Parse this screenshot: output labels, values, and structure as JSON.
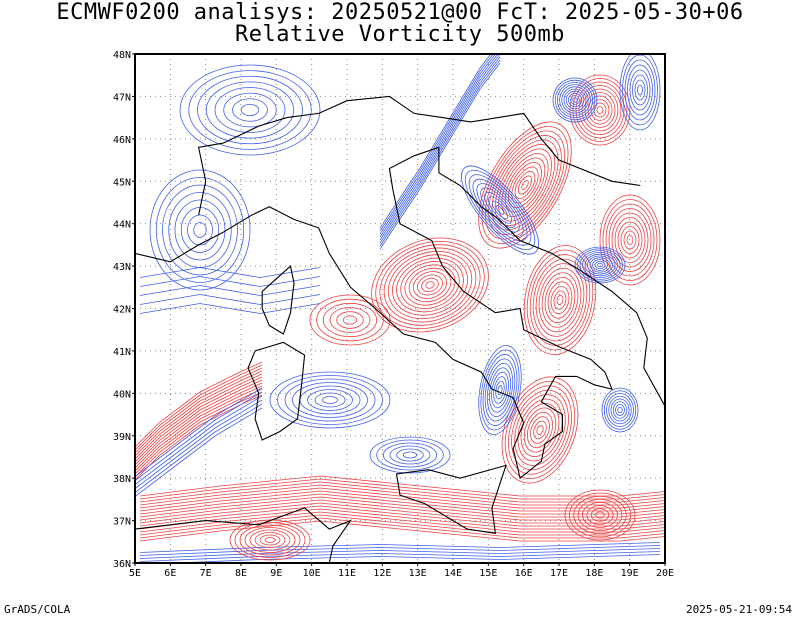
{
  "header": {
    "title_line1": "ECMWF0200 analisys: 20250521@00 FcT: 2025-05-30+06",
    "title_line2": "Relative Vorticity 500mb"
  },
  "map": {
    "lat_labels": [
      "48N",
      "47N",
      "46N",
      "45N",
      "44N",
      "43N",
      "42N",
      "41N",
      "40N",
      "39N",
      "38N",
      "37N",
      "36N"
    ],
    "lon_labels": [
      "5E",
      "6E",
      "7E",
      "8E",
      "9E",
      "10E",
      "11E",
      "12E",
      "13E",
      "14E",
      "15E",
      "16E",
      "17E",
      "18E",
      "19E",
      "20E"
    ],
    "lat_range": [
      36,
      48
    ],
    "lon_range": [
      5,
      20
    ],
    "gridlines": "dotted",
    "colors": {
      "positive_contours": "#f04040",
      "negative_contours": "#4060ee",
      "coastline": "#000000",
      "grid": "#888888"
    }
  },
  "footer": {
    "left": "GrADS/COLA",
    "right": "2025-05-21-09:54"
  }
}
